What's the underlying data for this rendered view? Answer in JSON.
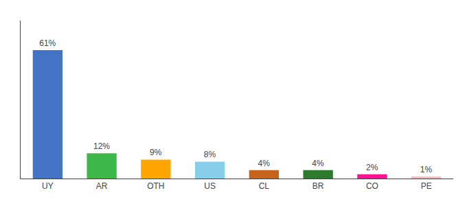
{
  "chart_data": {
    "type": "bar",
    "categories": [
      "UY",
      "AR",
      "OTH",
      "US",
      "CL",
      "BR",
      "CO",
      "PE"
    ],
    "values": [
      61,
      12,
      9,
      8,
      4,
      4,
      2,
      1
    ],
    "value_labels": [
      "61%",
      "12%",
      "9%",
      "8%",
      "4%",
      "4%",
      "2%",
      "1%"
    ],
    "colors": [
      "#4472c4",
      "#3cb84a",
      "#ffa500",
      "#87ceeb",
      "#c8631e",
      "#2d7a2d",
      "#ff1493",
      "#ffb6c1"
    ],
    "ylim": [
      0,
      75
    ],
    "grid": false,
    "data_labels": true,
    "tick_labels": "x"
  }
}
